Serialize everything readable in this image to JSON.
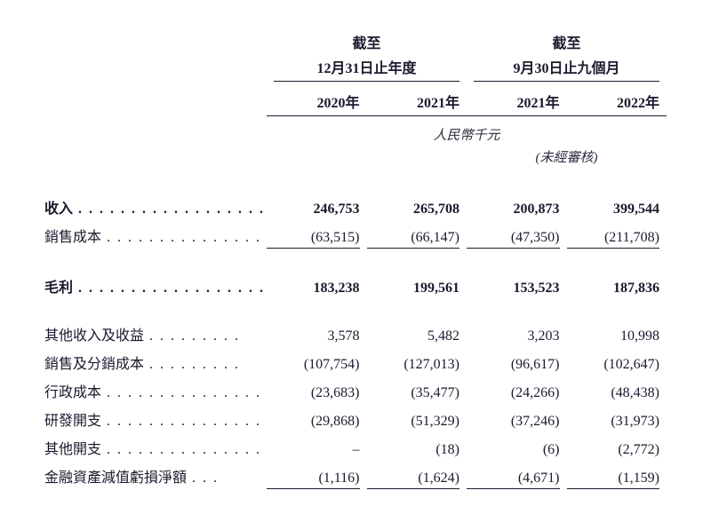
{
  "headers": {
    "period1_top": "截至",
    "period1_sub": "12月31日止年度",
    "period2_top": "截至",
    "period2_sub": "9月30日止九個月",
    "year1": "2020年",
    "year2": "2021年",
    "year3": "2021年",
    "year4": "2022年",
    "unit": "人民幣千元",
    "audit": "(未經審核)"
  },
  "rows": {
    "revenue": {
      "label": "收入",
      "v1": "246,753",
      "v2": "265,708",
      "v3": "200,873",
      "v4": "399,544"
    },
    "cogs": {
      "label": "銷售成本",
      "v1": "(63,515)",
      "v2": "(66,147)",
      "v3": "(47,350)",
      "v4": "(211,708)"
    },
    "gross": {
      "label": "毛利",
      "v1": "183,238",
      "v2": "199,561",
      "v3": "153,523",
      "v4": "187,836"
    },
    "other_income": {
      "label": "其他收入及收益",
      "v1": "3,578",
      "v2": "5,482",
      "v3": "3,203",
      "v4": "10,998"
    },
    "selling": {
      "label": "銷售及分銷成本",
      "v1": "(107,754)",
      "v2": "(127,013)",
      "v3": "(96,617)",
      "v4": "(102,647)"
    },
    "admin": {
      "label": "行政成本",
      "v1": "(23,683)",
      "v2": "(35,477)",
      "v3": "(24,266)",
      "v4": "(48,438)"
    },
    "rd": {
      "label": "研發開支",
      "v1": "(29,868)",
      "v2": "(51,329)",
      "v3": "(37,246)",
      "v4": "(31,973)"
    },
    "other_exp": {
      "label": "其他開支",
      "v1": "–",
      "v2": "(18)",
      "v3": "(6)",
      "v4": "(2,772)"
    },
    "impairment": {
      "label": "金融資產減值虧損淨額",
      "v1": "(1,116)",
      "v2": "(1,624)",
      "v3": "(4,671)",
      "v4": "(1,159)"
    }
  },
  "dots": {
    "long": " . . . . . . . . . . . . . . . . . . . .",
    "med": " . . . . . . . . . . . . . . .",
    "short": " . . . . . . . . .",
    "shorter": " . . . . . . .",
    "tiny": " . . ."
  },
  "colors": {
    "text": "#1a1a2e",
    "bg": "#ffffff"
  }
}
